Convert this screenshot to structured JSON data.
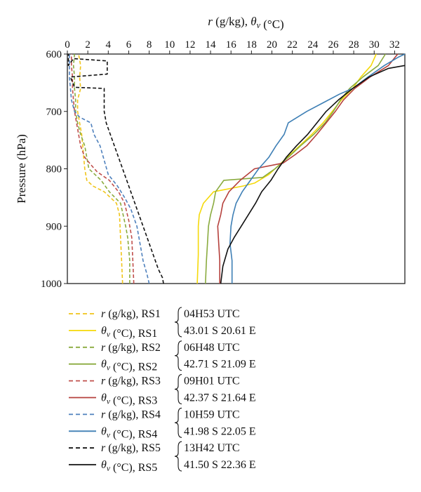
{
  "chart_data": {
    "type": "line",
    "title": "",
    "xlabel": "r (g/kg), θv (°C)",
    "ylabel": "Pressure (hPa)",
    "xlim": [
      0,
      33
    ],
    "ylim": [
      600,
      1000
    ],
    "y_inverted": true,
    "x_ticks": [
      "0",
      "2",
      "4",
      "6",
      "8",
      "10",
      "12",
      "14",
      "16",
      "18",
      "20",
      "22",
      "24",
      "26",
      "28",
      "30",
      "32"
    ],
    "y_ticks": [
      "600",
      "700",
      "800",
      "900",
      "1000"
    ],
    "grid": false,
    "legend_position": "bottom",
    "series": [
      {
        "name": "r (g/kg), RS1",
        "color": "#f0c419",
        "dash": true,
        "points": [
          [
            5.4,
            1000
          ],
          [
            5.3,
            960
          ],
          [
            5.2,
            920
          ],
          [
            5.1,
            880
          ],
          [
            4.8,
            860
          ],
          [
            3.6,
            840
          ],
          [
            2.5,
            830
          ],
          [
            1.9,
            820
          ],
          [
            1.7,
            800
          ],
          [
            1.6,
            780
          ],
          [
            1.5,
            760
          ],
          [
            1.4,
            740
          ],
          [
            1.2,
            720
          ],
          [
            1.0,
            700
          ],
          [
            1.0,
            680
          ],
          [
            1.3,
            660
          ],
          [
            1.2,
            640
          ],
          [
            1.3,
            620
          ],
          [
            1.1,
            600
          ]
        ]
      },
      {
        "name": "θv (°C), RS1",
        "color": "#f5d90a",
        "dash": false,
        "points": [
          [
            12.7,
            1000
          ],
          [
            12.8,
            950
          ],
          [
            12.8,
            900
          ],
          [
            12.9,
            880
          ],
          [
            13.3,
            860
          ],
          [
            14.3,
            840
          ],
          [
            17.2,
            830
          ],
          [
            18.3,
            825
          ],
          [
            19.7,
            810
          ],
          [
            20.6,
            795
          ],
          [
            21.5,
            780
          ],
          [
            22.7,
            760
          ],
          [
            23.9,
            740
          ],
          [
            25.0,
            720
          ],
          [
            25.9,
            700
          ],
          [
            26.8,
            680
          ],
          [
            27.9,
            660
          ],
          [
            28.7,
            640
          ],
          [
            29.7,
            620
          ],
          [
            30.2,
            600
          ]
        ]
      },
      {
        "name": "r (g/kg), RS2",
        "color": "#8aab3f",
        "dash": true,
        "points": [
          [
            6.1,
            1000
          ],
          [
            6.1,
            960
          ],
          [
            5.9,
            920
          ],
          [
            5.7,
            900
          ],
          [
            5.2,
            860
          ],
          [
            4.1,
            840
          ],
          [
            3.3,
            820
          ],
          [
            2.7,
            810
          ],
          [
            2.1,
            800
          ],
          [
            1.9,
            780
          ],
          [
            1.7,
            760
          ],
          [
            1.3,
            740
          ],
          [
            1.0,
            720
          ],
          [
            0.8,
            700
          ],
          [
            0.8,
            680
          ],
          [
            0.7,
            660
          ],
          [
            0.7,
            640
          ],
          [
            0.6,
            620
          ],
          [
            0.7,
            600
          ]
        ]
      },
      {
        "name": "θv (°C), RS2",
        "color": "#8aab3f",
        "dash": false,
        "points": [
          [
            13.5,
            1000
          ],
          [
            13.6,
            960
          ],
          [
            13.7,
            930
          ],
          [
            13.8,
            900
          ],
          [
            14.0,
            880
          ],
          [
            14.3,
            860
          ],
          [
            14.5,
            840
          ],
          [
            15.3,
            820
          ],
          [
            19.1,
            815
          ],
          [
            20.3,
            800
          ],
          [
            21.6,
            780
          ],
          [
            22.8,
            760
          ],
          [
            24.1,
            740
          ],
          [
            25.2,
            720
          ],
          [
            26.0,
            700
          ],
          [
            26.7,
            680
          ],
          [
            27.6,
            660
          ],
          [
            28.9,
            640
          ],
          [
            30.4,
            620
          ],
          [
            31.1,
            600
          ]
        ]
      },
      {
        "name": "r (g/kg), RS3",
        "color": "#c0504d",
        "dash": true,
        "points": [
          [
            6.5,
            1000
          ],
          [
            6.4,
            960
          ],
          [
            6.3,
            920
          ],
          [
            6.0,
            890
          ],
          [
            5.6,
            860
          ],
          [
            5.0,
            840
          ],
          [
            4.1,
            820
          ],
          [
            2.9,
            805
          ],
          [
            2.4,
            795
          ],
          [
            1.7,
            780
          ],
          [
            1.3,
            760
          ],
          [
            1.1,
            740
          ],
          [
            0.9,
            720
          ],
          [
            0.7,
            700
          ],
          [
            0.6,
            680
          ],
          [
            0.5,
            660
          ],
          [
            0.5,
            640
          ],
          [
            0.4,
            620
          ],
          [
            0.4,
            600
          ]
        ]
      },
      {
        "name": "θv (°C), RS3",
        "color": "#b5403c",
        "dash": false,
        "points": [
          [
            14.9,
            1000
          ],
          [
            14.9,
            960
          ],
          [
            14.8,
            930
          ],
          [
            14.7,
            900
          ],
          [
            15.0,
            880
          ],
          [
            15.2,
            860
          ],
          [
            15.8,
            840
          ],
          [
            16.9,
            820
          ],
          [
            18.3,
            800
          ],
          [
            21.1,
            790
          ],
          [
            22.3,
            775
          ],
          [
            23.4,
            760
          ],
          [
            24.4,
            740
          ],
          [
            25.3,
            720
          ],
          [
            26.2,
            700
          ],
          [
            27.0,
            680
          ],
          [
            28.1,
            660
          ],
          [
            29.6,
            640
          ],
          [
            31.4,
            620
          ],
          [
            32.3,
            600
          ]
        ]
      },
      {
        "name": "r (g/kg), RS4",
        "color": "#4f81bd",
        "dash": true,
        "points": [
          [
            8.0,
            1000
          ],
          [
            7.8,
            985
          ],
          [
            7.4,
            960
          ],
          [
            7.1,
            930
          ],
          [
            6.8,
            900
          ],
          [
            6.2,
            870
          ],
          [
            5.6,
            850
          ],
          [
            4.9,
            830
          ],
          [
            4.0,
            810
          ],
          [
            3.2,
            760
          ],
          [
            2.6,
            740
          ],
          [
            2.3,
            720
          ],
          [
            1.2,
            710
          ],
          [
            0.7,
            700
          ],
          [
            0.4,
            680
          ],
          [
            0.3,
            660
          ],
          [
            0.2,
            640
          ],
          [
            0.2,
            620
          ],
          [
            0.2,
            600
          ]
        ]
      },
      {
        "name": "θv (°C), RS4",
        "color": "#3e7fb5",
        "dash": false,
        "points": [
          [
            16.1,
            1000
          ],
          [
            16.1,
            960
          ],
          [
            15.9,
            930
          ],
          [
            16.0,
            900
          ],
          [
            16.2,
            880
          ],
          [
            16.5,
            860
          ],
          [
            17.1,
            840
          ],
          [
            17.9,
            820
          ],
          [
            18.7,
            800
          ],
          [
            19.7,
            780
          ],
          [
            20.4,
            760
          ],
          [
            21.2,
            740
          ],
          [
            21.6,
            720
          ],
          [
            23.4,
            700
          ],
          [
            25.0,
            685
          ],
          [
            26.6,
            670
          ],
          [
            27.9,
            660
          ],
          [
            29.4,
            640
          ],
          [
            31.0,
            620
          ],
          [
            32.4,
            605
          ],
          [
            33.0,
            600
          ]
        ]
      },
      {
        "name": "r (g/kg), RS5",
        "color": "#111111",
        "dash": true,
        "points": [
          [
            9.4,
            1000
          ],
          [
            9.3,
            990
          ],
          [
            8.9,
            975
          ],
          [
            8.4,
            950
          ],
          [
            7.6,
            910
          ],
          [
            6.8,
            870
          ],
          [
            6.0,
            830
          ],
          [
            5.2,
            790
          ],
          [
            4.4,
            750
          ],
          [
            3.8,
            720
          ],
          [
            3.6,
            700
          ],
          [
            3.6,
            660
          ],
          [
            0.7,
            658
          ],
          [
            0.3,
            640
          ],
          [
            3.9,
            635
          ],
          [
            3.9,
            612
          ],
          [
            0.6,
            608
          ],
          [
            0.1,
            620
          ],
          [
            0.1,
            600
          ]
        ]
      },
      {
        "name": "θv (°C), RS5",
        "color": "#111111",
        "dash": false,
        "points": [
          [
            15.0,
            1000
          ],
          [
            15.2,
            970
          ],
          [
            15.7,
            940
          ],
          [
            16.3,
            920
          ],
          [
            17.0,
            900
          ],
          [
            17.7,
            880
          ],
          [
            18.4,
            860
          ],
          [
            19.0,
            840
          ],
          [
            19.9,
            820
          ],
          [
            20.6,
            800
          ],
          [
            21.4,
            780
          ],
          [
            22.4,
            760
          ],
          [
            23.5,
            740
          ],
          [
            24.4,
            720
          ],
          [
            25.3,
            700
          ],
          [
            26.5,
            680
          ],
          [
            27.9,
            660
          ],
          [
            29.5,
            640
          ],
          [
            31.4,
            625
          ],
          [
            33.0,
            620
          ]
        ]
      }
    ],
    "legend_entries": [
      {
        "series": 0,
        "label": "r (g/kg), RS1"
      },
      {
        "series": 1,
        "label": "θv (°C), RS1"
      },
      {
        "series": 2,
        "label": "r (g/kg), RS2"
      },
      {
        "series": 3,
        "label": "θv (°C), RS2"
      },
      {
        "series": 4,
        "label": "r (g/kg), RS3"
      },
      {
        "series": 5,
        "label": "θv (°C), RS3"
      },
      {
        "series": 6,
        "label": "r (g/kg), RS4"
      },
      {
        "series": 7,
        "label": "θv (°C), RS4"
      },
      {
        "series": 8,
        "label": "r (g/kg), RS5"
      },
      {
        "series": 9,
        "label": "θv (°C), RS5"
      }
    ],
    "legend_annotations": [
      {
        "time": "04H53 UTC",
        "position": "43.01 S 20.61 E"
      },
      {
        "time": "06H48 UTC",
        "position": "42.71 S 21.09 E"
      },
      {
        "time": "09H01 UTC",
        "position": "42.37 S 21.64 E"
      },
      {
        "time": "10H59 UTC",
        "position": "41.98 S 22.05 E"
      },
      {
        "time": "13H42 UTC",
        "position": "41.50 S 22.36 E"
      }
    ]
  }
}
